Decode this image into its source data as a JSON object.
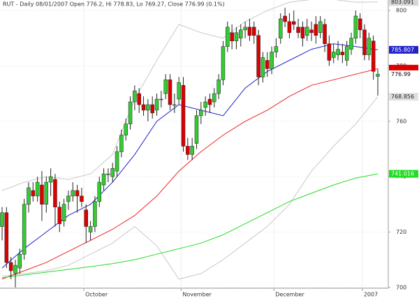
{
  "chart_data": {
    "type": "candlestick",
    "title": "RUT - Daily 08/01/2007 Open 776.2, Hi 778.83, Lo 769.27, Close 776.99 (0.1%)",
    "categories": [
      null,
      null,
      null,
      null,
      null,
      null,
      null,
      null,
      null,
      null,
      null,
      null,
      null,
      null,
      null,
      null,
      null,
      null,
      null,
      "October",
      null,
      null,
      null,
      null,
      null,
      null,
      null,
      null,
      null,
      null,
      null,
      null,
      null,
      null,
      null,
      null,
      null,
      null,
      null,
      null,
      null,
      "November",
      null,
      null,
      null,
      null,
      null,
      null,
      null,
      null,
      null,
      null,
      null,
      null,
      null,
      null,
      null,
      null,
      null,
      null,
      null,
      null,
      "December",
      null,
      null,
      null,
      null,
      null,
      null,
      null,
      null,
      null,
      null,
      null,
      null,
      null,
      null,
      null,
      null,
      null,
      null,
      null,
      "2007",
      null,
      null,
      null
    ],
    "candles": [
      [
        722,
        729,
        717,
        727
      ],
      [
        727,
        729,
        707,
        709
      ],
      [
        709,
        711,
        703,
        706
      ],
      [
        705,
        710,
        700,
        708
      ],
      [
        707,
        714,
        705,
        712
      ],
      [
        712,
        732,
        710,
        730
      ],
      [
        730,
        738,
        727,
        736
      ],
      [
        735,
        738,
        731,
        733
      ],
      [
        733,
        740,
        731,
        738
      ],
      [
        737,
        742,
        724,
        730
      ],
      [
        730,
        740,
        727,
        738
      ],
      [
        738,
        743,
        733,
        740
      ],
      [
        739,
        741,
        722,
        729
      ],
      [
        729,
        731,
        720,
        723
      ],
      [
        724,
        732,
        722,
        730
      ],
      [
        731,
        735,
        728,
        733
      ],
      [
        733,
        738,
        731,
        735
      ],
      [
        735,
        737,
        727,
        733
      ],
      [
        733,
        736,
        729,
        731
      ],
      [
        728,
        730,
        716,
        722
      ],
      [
        720,
        724,
        717,
        722
      ],
      [
        722,
        733,
        720,
        731
      ],
      [
        731,
        740,
        729,
        738
      ],
      [
        737,
        743,
        735,
        741
      ],
      [
        741,
        743,
        738,
        741
      ],
      [
        740,
        745,
        738,
        743
      ],
      [
        742,
        751,
        740,
        749
      ],
      [
        749,
        757,
        747,
        755
      ],
      [
        755,
        761,
        753,
        759
      ],
      [
        759,
        769,
        757,
        767
      ],
      [
        767,
        773,
        764,
        771
      ],
      [
        770,
        772,
        763,
        766
      ],
      [
        766,
        769,
        762,
        764
      ],
      [
        764,
        768,
        760,
        766
      ],
      [
        766,
        769,
        761,
        763
      ],
      [
        764,
        770,
        762,
        768
      ],
      [
        768,
        771,
        765,
        768
      ],
      [
        770,
        777,
        768,
        775
      ],
      [
        775,
        777,
        764,
        766
      ],
      [
        766,
        770,
        763,
        766
      ],
      [
        768,
        776,
        766,
        774
      ],
      [
        773,
        776,
        749,
        751
      ],
      [
        751,
        754,
        746,
        748
      ],
      [
        748,
        754,
        746,
        751
      ],
      [
        752,
        764,
        750,
        762
      ],
      [
        762,
        767,
        759,
        764
      ],
      [
        765,
        769,
        762,
        767
      ],
      [
        768,
        770,
        763,
        766
      ],
      [
        767,
        772,
        765,
        770
      ],
      [
        770,
        777,
        768,
        775
      ],
      [
        775,
        789,
        773,
        787
      ],
      [
        787,
        796,
        785,
        794
      ],
      [
        792,
        795,
        786,
        789
      ],
      [
        789,
        794,
        786,
        792
      ],
      [
        790,
        795,
        787,
        793
      ],
      [
        793,
        796,
        790,
        794
      ],
      [
        794,
        797,
        789,
        791
      ],
      [
        794,
        796,
        788,
        791
      ],
      [
        791,
        793,
        773,
        776
      ],
      [
        776,
        785,
        774,
        783
      ],
      [
        782,
        785,
        776,
        779
      ],
      [
        779,
        787,
        777,
        785
      ],
      [
        785,
        790,
        783,
        787
      ],
      [
        790,
        799,
        788,
        797
      ],
      [
        798,
        801,
        794,
        796
      ],
      [
        796,
        799,
        790,
        792
      ],
      [
        796,
        800,
        793,
        795
      ],
      [
        794,
        797,
        790,
        792
      ],
      [
        794,
        796,
        787,
        790
      ],
      [
        791,
        797,
        789,
        794
      ],
      [
        793,
        796,
        789,
        792
      ],
      [
        795,
        798,
        788,
        791
      ],
      [
        792,
        798,
        790,
        796
      ],
      [
        795,
        797,
        785,
        788
      ],
      [
        788,
        791,
        780,
        782
      ],
      [
        783,
        788,
        781,
        785
      ],
      [
        784,
        789,
        782,
        786
      ],
      [
        785,
        788,
        781,
        784
      ],
      [
        782,
        789,
        780,
        787
      ],
      [
        786,
        792,
        784,
        790
      ],
      [
        790,
        800,
        788,
        798
      ],
      [
        797,
        799,
        790,
        793
      ],
      [
        793,
        795,
        782,
        784
      ],
      [
        784,
        792,
        782,
        790
      ],
      [
        789,
        791,
        775,
        778
      ],
      [
        776.2,
        778.83,
        769.27,
        776.99
      ]
    ],
    "up_color": "#33cc33",
    "down_color": "#dd0000",
    "line_x": [
      0,
      5,
      10,
      15,
      20,
      25,
      30,
      35,
      40,
      45,
      50,
      55,
      60,
      65,
      70,
      75,
      80,
      85
    ],
    "lines": [
      {
        "color": "#c8c8c8",
        "values": [
          735,
          738,
          740,
          739,
          741,
          748,
          768,
          782,
          795,
          792,
          790,
          796,
          800,
          803,
          804,
          804,
          803,
          803.091
        ]
      },
      {
        "color": "#c8c8c8",
        "values": [
          704,
          705,
          706,
          708,
          712,
          716,
          722,
          715,
          703,
          705,
          710,
          716,
          722,
          730,
          742,
          751,
          759,
          768.856
        ]
      },
      {
        "color": "#2222cc",
        "values": [
          707,
          714,
          720,
          726,
          730,
          738,
          748,
          760,
          766,
          764,
          762,
          772,
          778,
          782,
          786,
          788,
          787,
          785.807
        ]
      },
      {
        "color": "#ee2222",
        "values": [
          703,
          706,
          709,
          713,
          717,
          721,
          726,
          733,
          742,
          749,
          755,
          760,
          764,
          769,
          773,
          775,
          777,
          779
        ]
      },
      {
        "color": "#22dd22",
        "values": [
          703.5,
          704.5,
          705.5,
          706.5,
          707.5,
          708.6,
          710,
          712,
          714,
          716,
          719,
          723,
          727,
          731,
          734,
          737,
          739.5,
          741.016
        ]
      }
    ],
    "ylim": [
      699.7,
      803.8
    ],
    "yticks": [
      700,
      720,
      740,
      760,
      780,
      800
    ],
    "grid": true
  }
}
